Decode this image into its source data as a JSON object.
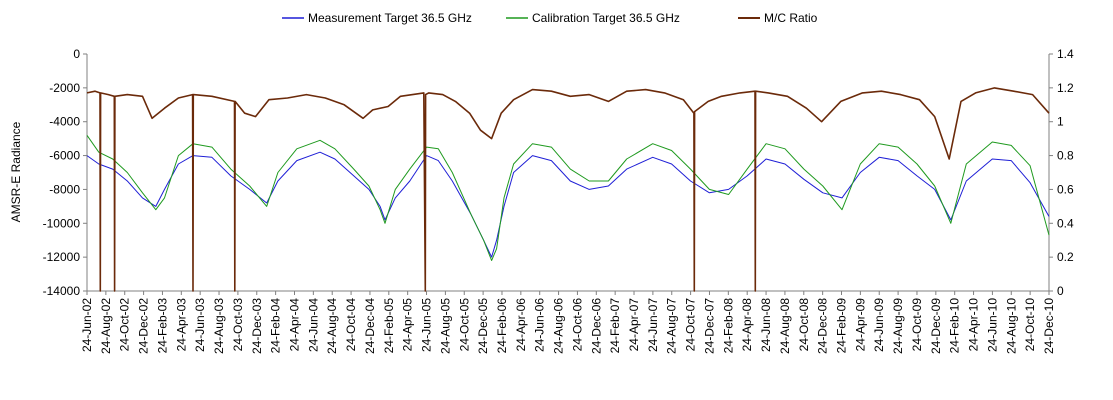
{
  "chart_data": {
    "type": "line",
    "title": "",
    "ylabel": "AMSR-E Radiance",
    "y2label": "",
    "ylim": [
      -14000,
      0
    ],
    "y2lim": [
      0,
      1.4
    ],
    "yticks": [
      -14000,
      -12000,
      -10000,
      -8000,
      -6000,
      -4000,
      -2000,
      0
    ],
    "yticks_labels": [
      "-14000",
      "-12000",
      "-10000",
      "-8000",
      "-6000",
      "-4000",
      "-2000",
      "0"
    ],
    "y2ticks": [
      0,
      0.2,
      0.4,
      0.6,
      0.8,
      1,
      1.2,
      1.4
    ],
    "y2ticks_labels": [
      "0",
      "0.2",
      "0.4",
      "0.6",
      "0.8",
      "1",
      "1.2",
      "1.4"
    ],
    "xlim": [
      "2002-06-24",
      "2010-12-24"
    ],
    "xtick_labels": [
      "24-Jun-02",
      "24-Aug-02",
      "24-Oct-02",
      "24-Dec-02",
      "24-Feb-03",
      "24-Apr-03",
      "24-Jun-03",
      "24-Aug-03",
      "24-Oct-03",
      "24-Dec-03",
      "24-Feb-04",
      "24-Apr-04",
      "24-Jun-04",
      "24-Aug-04",
      "24-Oct-04",
      "24-Dec-04",
      "24-Feb-05",
      "24-Apr-05",
      "24-Jun-05",
      "24-Aug-05",
      "24-Oct-05",
      "24-Dec-05",
      "24-Feb-06",
      "24-Apr-06",
      "24-Jun-06",
      "24-Aug-06",
      "24-Oct-06",
      "24-Dec-06",
      "24-Feb-07",
      "24-Apr-07",
      "24-Jun-07",
      "24-Aug-07",
      "24-Oct-07",
      "24-Dec-07",
      "24-Feb-08",
      "24-Apr-08",
      "24-Jun-08",
      "24-Aug-08",
      "24-Oct-08",
      "24-Dec-08",
      "24-Feb-09",
      "24-Apr-09",
      "24-Jun-09",
      "24-Aug-09",
      "24-Oct-09",
      "24-Dec-09",
      "24-Feb-10",
      "24-Apr-10",
      "24-Jun-10",
      "24-Aug-10",
      "24-Oct-10",
      "24-Dec-10"
    ],
    "grid": false,
    "legend_position": "top",
    "series": [
      {
        "name": "Measurement Target 36.5 GHz",
        "axis": "left",
        "color": "#1f1fd6",
        "x": [
          "2002-06-24",
          "2002-08-01",
          "2002-09-15",
          "2002-11-01",
          "2002-12-20",
          "2003-02-01",
          "2003-03-01",
          "2003-04-15",
          "2003-06-01",
          "2003-08-01",
          "2003-10-01",
          "2003-12-01",
          "2004-01-25",
          "2004-03-01",
          "2004-05-01",
          "2004-07-15",
          "2004-09-01",
          "2004-11-01",
          "2004-12-20",
          "2005-01-25",
          "2005-02-10",
          "2005-03-15",
          "2005-05-01",
          "2005-06-24",
          "2005-08-01",
          "2005-09-15",
          "2005-11-15",
          "2005-12-25",
          "2006-01-20",
          "2006-02-05",
          "2006-03-01",
          "2006-04-01",
          "2006-06-01",
          "2006-08-01",
          "2006-10-01",
          "2006-12-01",
          "2007-02-01",
          "2007-04-01",
          "2007-06-24",
          "2007-08-24",
          "2007-10-24",
          "2007-12-24",
          "2008-02-24",
          "2008-04-24",
          "2008-06-24",
          "2008-08-24",
          "2008-10-24",
          "2008-12-24",
          "2009-02-24",
          "2009-04-24",
          "2009-06-24",
          "2009-08-24",
          "2009-10-24",
          "2009-12-20",
          "2010-02-10",
          "2010-04-01",
          "2010-06-24",
          "2010-08-24",
          "2010-10-24",
          "2010-12-24"
        ],
        "y": [
          -6000,
          -6500,
          -6800,
          -7500,
          -8500,
          -9000,
          -8000,
          -6500,
          -6000,
          -6100,
          -7200,
          -8000,
          -8800,
          -7500,
          -6300,
          -5800,
          -6200,
          -7200,
          -8000,
          -9000,
          -9800,
          -8500,
          -7500,
          -6000,
          -6300,
          -7500,
          -9500,
          -11000,
          -12000,
          -11000,
          -9000,
          -7000,
          -6000,
          -6300,
          -7500,
          -8000,
          -7800,
          -6800,
          -6100,
          -6500,
          -7500,
          -8200,
          -8000,
          -7200,
          -6200,
          -6500,
          -7400,
          -8200,
          -8500,
          -7000,
          -6100,
          -6300,
          -7200,
          -8000,
          -9800,
          -7500,
          -6200,
          -6300,
          -7600,
          -9600
        ]
      },
      {
        "name": "Calibration Target 36.5 GHz",
        "axis": "left",
        "color": "#1f9a1f",
        "x": [
          "2002-06-24",
          "2002-08-01",
          "2002-09-15",
          "2002-11-01",
          "2002-12-20",
          "2003-02-01",
          "2003-03-01",
          "2003-04-15",
          "2003-06-01",
          "2003-08-01",
          "2003-10-01",
          "2003-12-01",
          "2004-01-25",
          "2004-03-01",
          "2004-05-01",
          "2004-07-15",
          "2004-09-01",
          "2004-11-01",
          "2004-12-20",
          "2005-01-25",
          "2005-02-10",
          "2005-03-15",
          "2005-05-01",
          "2005-06-24",
          "2005-08-01",
          "2005-09-15",
          "2005-11-15",
          "2005-12-25",
          "2006-01-20",
          "2006-02-05",
          "2006-03-01",
          "2006-04-01",
          "2006-06-01",
          "2006-08-01",
          "2006-10-01",
          "2006-12-01",
          "2007-02-01",
          "2007-04-01",
          "2007-06-24",
          "2007-08-24",
          "2007-10-24",
          "2007-12-24",
          "2008-02-24",
          "2008-04-24",
          "2008-06-24",
          "2008-08-24",
          "2008-10-24",
          "2008-12-24",
          "2009-02-24",
          "2009-04-24",
          "2009-06-24",
          "2009-08-24",
          "2009-10-24",
          "2009-12-20",
          "2010-02-10",
          "2010-04-01",
          "2010-06-24",
          "2010-08-24",
          "2010-10-24",
          "2010-12-24"
        ],
        "y": [
          -4800,
          -5800,
          -6200,
          -7000,
          -8200,
          -9200,
          -8500,
          -6000,
          -5300,
          -5500,
          -6800,
          -7800,
          -9000,
          -7000,
          -5600,
          -5100,
          -5600,
          -6800,
          -7800,
          -9200,
          -10000,
          -8000,
          -6800,
          -5500,
          -5600,
          -7000,
          -9500,
          -11000,
          -12200,
          -11500,
          -8500,
          -6500,
          -5300,
          -5500,
          -6800,
          -7500,
          -7500,
          -6200,
          -5300,
          -5700,
          -6800,
          -8000,
          -8300,
          -6800,
          -5300,
          -5600,
          -6800,
          -7800,
          -9200,
          -6500,
          -5300,
          -5500,
          -6500,
          -7800,
          -10000,
          -6500,
          -5200,
          -5400,
          -6600,
          -10700
        ]
      },
      {
        "name": "M/C Ratio",
        "axis": "right",
        "color": "#6b2a0a",
        "x": [
          "2002-06-24",
          "2002-07-20",
          "2002-08-05",
          "2002-08-06",
          "2002-08-07",
          "2002-09-01",
          "2002-09-20",
          "2002-09-21",
          "2002-09-22",
          "2002-11-01",
          "2002-12-20",
          "2003-01-20",
          "2003-03-01",
          "2003-04-15",
          "2003-05-31",
          "2003-06-01",
          "2003-06-02",
          "2003-08-01",
          "2003-10-13",
          "2003-10-14",
          "2003-10-15",
          "2003-11-15",
          "2003-12-20",
          "2004-02-01",
          "2004-04-01",
          "2004-06-01",
          "2004-08-01",
          "2004-10-01",
          "2004-12-01",
          "2005-01-01",
          "2005-02-20",
          "2005-04-01",
          "2005-06-15",
          "2005-06-20",
          "2005-06-21",
          "2005-07-01",
          "2005-08-15",
          "2005-09-25",
          "2005-11-10",
          "2005-12-15",
          "2006-01-20",
          "2006-02-20",
          "2006-04-01",
          "2006-06-01",
          "2006-08-01",
          "2006-10-01",
          "2006-12-01",
          "2007-02-01",
          "2007-04-01",
          "2007-06-01",
          "2007-08-01",
          "2007-10-01",
          "2007-11-04",
          "2007-11-05",
          "2007-11-06",
          "2007-12-20",
          "2008-02-01",
          "2008-04-01",
          "2008-05-19",
          "2008-05-20",
          "2008-05-21",
          "2008-07-01",
          "2008-09-01",
          "2008-11-01",
          "2008-12-20",
          "2009-02-20",
          "2009-05-01",
          "2009-07-01",
          "2009-09-01",
          "2009-11-01",
          "2009-12-20",
          "2010-02-05",
          "2010-03-15",
          "2010-05-01",
          "2010-07-01",
          "2010-09-01",
          "2010-11-01",
          "2010-12-24"
        ],
        "y": [
          1.17,
          1.18,
          1.17,
          0,
          1.17,
          1.16,
          1.15,
          0,
          1.15,
          1.16,
          1.15,
          1.02,
          1.08,
          1.14,
          1.16,
          0,
          1.16,
          1.15,
          1.12,
          0,
          1.12,
          1.05,
          1.03,
          1.13,
          1.14,
          1.16,
          1.14,
          1.1,
          1.02,
          1.07,
          1.09,
          1.15,
          1.17,
          0,
          1.16,
          1.17,
          1.16,
          1.12,
          1.05,
          0.95,
          0.9,
          1.05,
          1.13,
          1.19,
          1.18,
          1.15,
          1.16,
          1.12,
          1.18,
          1.19,
          1.17,
          1.13,
          1.05,
          0,
          1.06,
          1.12,
          1.15,
          1.17,
          1.18,
          0,
          1.18,
          1.17,
          1.15,
          1.08,
          1.0,
          1.12,
          1.17,
          1.18,
          1.16,
          1.13,
          1.03,
          0.78,
          1.12,
          1.17,
          1.2,
          1.18,
          1.16,
          1.05
        ]
      }
    ]
  }
}
